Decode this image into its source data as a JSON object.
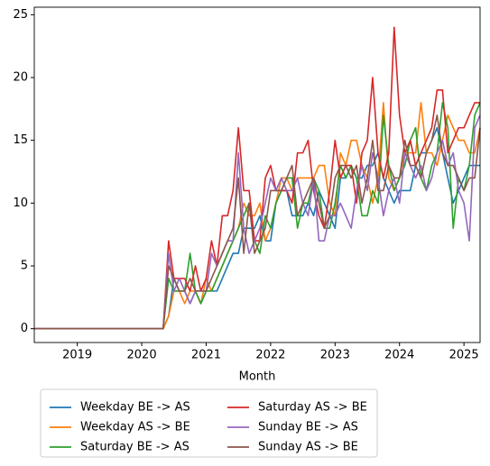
{
  "chart_data": {
    "type": "line",
    "x_label": "Month",
    "x": [
      2018.333,
      2018.417,
      2018.5,
      2018.583,
      2018.667,
      2018.75,
      2018.833,
      2018.917,
      2019,
      2019.083,
      2019.167,
      2019.25,
      2019.333,
      2019.417,
      2019.5,
      2019.583,
      2019.667,
      2019.75,
      2019.833,
      2019.917,
      2020,
      2020.083,
      2020.167,
      2020.25,
      2020.333,
      2020.417,
      2020.5,
      2020.583,
      2020.667,
      2020.75,
      2020.833,
      2020.917,
      2021,
      2021.083,
      2021.167,
      2021.25,
      2021.333,
      2021.417,
      2021.5,
      2021.583,
      2021.667,
      2021.75,
      2021.833,
      2021.917,
      2022,
      2022.083,
      2022.167,
      2022.25,
      2022.333,
      2022.417,
      2022.5,
      2022.583,
      2022.667,
      2022.75,
      2022.833,
      2022.917,
      2023,
      2023.083,
      2023.167,
      2023.25,
      2023.333,
      2023.417,
      2023.5,
      2023.583,
      2023.667,
      2023.75,
      2023.833,
      2023.917,
      2024,
      2024.083,
      2024.167,
      2024.25,
      2024.333,
      2024.417,
      2024.5,
      2024.583,
      2024.667,
      2024.75,
      2024.833,
      2024.917,
      2025,
      2025.083,
      2025.167,
      2025.25
    ],
    "xlim": [
      2018.333,
      2025.25
    ],
    "xticks": [
      2019,
      2020,
      2021,
      2022,
      2023,
      2024,
      2025
    ],
    "ylim": [
      -1.1,
      25.6
    ],
    "yticks": [
      0,
      5,
      10,
      15,
      20,
      25
    ],
    "legend": "lower center",
    "series": [
      {
        "name": "Weekday BE -> AS",
        "color": "#1f77b4",
        "values": [
          0,
          0,
          0,
          0,
          0,
          0,
          0,
          0,
          0,
          0,
          0,
          0,
          0,
          0,
          0,
          0,
          0,
          0,
          0,
          0,
          0,
          0,
          0,
          0,
          0,
          1,
          4,
          3,
          3,
          2,
          3,
          2,
          3,
          3,
          3,
          4,
          5,
          6,
          6,
          8,
          8,
          8,
          9,
          7,
          7,
          10,
          11,
          11,
          9,
          9,
          9,
          10,
          9,
          11,
          10,
          9,
          8,
          12,
          12,
          13,
          12,
          12,
          13,
          13,
          14,
          12,
          11,
          10,
          11,
          11,
          11,
          13,
          14,
          14,
          15,
          16,
          14,
          12,
          10,
          11,
          12,
          13,
          13,
          13
        ]
      },
      {
        "name": "Weekday AS -> BE",
        "color": "#ff7f0e",
        "values": [
          0,
          0,
          0,
          0,
          0,
          0,
          0,
          0,
          0,
          0,
          0,
          0,
          0,
          0,
          0,
          0,
          0,
          0,
          0,
          0,
          0,
          0,
          0,
          0,
          0,
          1,
          3,
          3,
          2,
          3,
          3,
          2,
          4,
          3,
          4,
          5,
          6,
          7,
          8,
          10,
          9,
          9,
          10,
          7,
          8,
          10,
          12,
          12,
          11,
          12,
          12,
          12,
          12,
          13,
          13,
          10,
          9,
          14,
          13,
          15,
          15,
          13,
          12,
          10,
          12,
          18,
          12,
          11,
          12,
          14,
          14,
          14,
          18,
          14,
          14,
          13,
          15,
          17,
          16,
          15,
          15,
          14,
          14,
          16
        ]
      },
      {
        "name": "Saturday BE -> AS",
        "color": "#2ca02c",
        "values": [
          0,
          0,
          0,
          0,
          0,
          0,
          0,
          0,
          0,
          0,
          0,
          0,
          0,
          0,
          0,
          0,
          0,
          0,
          0,
          0,
          0,
          0,
          0,
          0,
          0,
          4,
          3,
          3,
          3,
          6,
          3,
          2,
          3,
          3,
          4,
          5,
          6,
          7,
          8,
          9,
          10,
          7,
          6,
          9,
          8,
          10,
          11,
          12,
          12,
          8,
          10,
          10,
          12,
          11,
          8,
          8,
          10,
          13,
          12,
          13,
          12,
          9,
          9,
          11,
          10,
          17,
          13,
          11,
          12,
          13,
          15,
          16,
          12,
          11,
          13,
          14,
          18,
          16,
          8,
          12,
          11,
          13,
          17,
          18
        ]
      },
      {
        "name": "Saturday AS -> BE",
        "color": "#d62728",
        "values": [
          0,
          0,
          0,
          0,
          0,
          0,
          0,
          0,
          0,
          0,
          0,
          0,
          0,
          0,
          0,
          0,
          0,
          0,
          0,
          0,
          0,
          0,
          0,
          0,
          0,
          7,
          4,
          4,
          4,
          3,
          5,
          3,
          4,
          7,
          5,
          9,
          9,
          11,
          16,
          11,
          11,
          7,
          7,
          12,
          13,
          11,
          11,
          11,
          10,
          14,
          14,
          15,
          11,
          9,
          8,
          11,
          15,
          12,
          13,
          13,
          10,
          14,
          15,
          20,
          14,
          12,
          14,
          24,
          17,
          14,
          15,
          13,
          14,
          15,
          16,
          19,
          19,
          14,
          15,
          16,
          16,
          17,
          18,
          18
        ]
      },
      {
        "name": "Sunday BE -> AS",
        "color": "#9467bd",
        "values": [
          0,
          0,
          0,
          0,
          0,
          0,
          0,
          0,
          0,
          0,
          0,
          0,
          0,
          0,
          0,
          0,
          0,
          0,
          0,
          0,
          0,
          0,
          0,
          0,
          0,
          6,
          3,
          4,
          3,
          2,
          3,
          3,
          3,
          6,
          5,
          6,
          7,
          7,
          14,
          8,
          6,
          7,
          8,
          10,
          12,
          11,
          12,
          11,
          11,
          12,
          10,
          9,
          12,
          7,
          7,
          9,
          9,
          10,
          9,
          8,
          11,
          13,
          11,
          14,
          12,
          9,
          11,
          12,
          10,
          14,
          13,
          12,
          13,
          11,
          12,
          14,
          15,
          13,
          14,
          11,
          10,
          7,
          16,
          17
        ]
      },
      {
        "name": "Sunday AS -> BE",
        "color": "#8c564b",
        "values": [
          0,
          0,
          0,
          0,
          0,
          0,
          0,
          0,
          0,
          0,
          0,
          0,
          0,
          0,
          0,
          0,
          0,
          0,
          0,
          0,
          0,
          0,
          0,
          0,
          0,
          5,
          4,
          3,
          3,
          4,
          3,
          3,
          3,
          4,
          5,
          6,
          7,
          8,
          12,
          6,
          10,
          6,
          7,
          8,
          11,
          11,
          11,
          12,
          13,
          9,
          10,
          11,
          12,
          10,
          8,
          9,
          12,
          13,
          13,
          12,
          13,
          10,
          12,
          15,
          11,
          11,
          13,
          12,
          12,
          15,
          13,
          13,
          12,
          14,
          15,
          17,
          14,
          13,
          13,
          12,
          11,
          12,
          12,
          16
        ]
      }
    ]
  }
}
